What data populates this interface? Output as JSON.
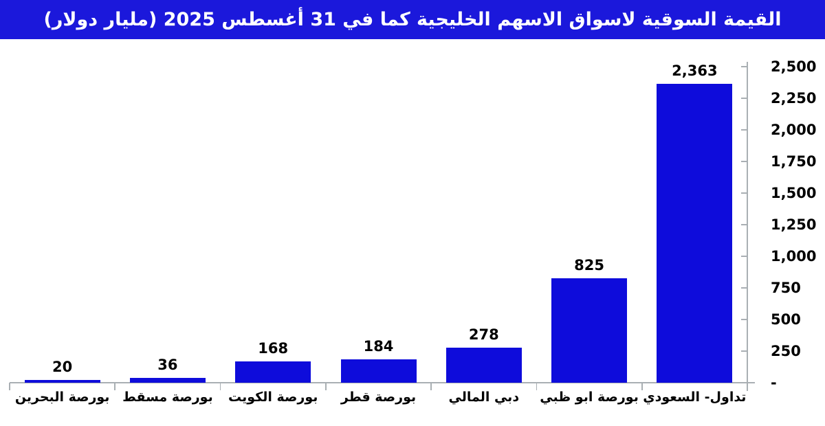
{
  "title": {
    "text": "القيمة السوقية لاسواق الاسهم الخليجية كما في 31 أغسطس 2025 (مليار دولار)"
  },
  "colors": {
    "title_bg": "#1b18db",
    "title_text": "#ffffff",
    "bar": "#0e0cdb",
    "axis": "#a9afb3",
    "label_text": "#000000",
    "background": "#ffffff"
  },
  "chart_data": {
    "type": "bar",
    "direction": "rtl",
    "title": "القيمة السوقية لاسواق الاسهم الخليجية كما في 31 أغسطس 2025 (مليار دولار)",
    "categories": [
      "بورصة البحرين",
      "بورصة مسقط",
      "بورصة الكويت",
      "بورصة قطر",
      "دبي المالي",
      "بورصة ابو ظبي",
      "تداول- السعودي"
    ],
    "values": [
      20,
      36,
      168,
      184,
      278,
      825,
      2363
    ],
    "value_labels": [
      "20",
      "36",
      "168",
      "184",
      "278",
      "825",
      "2,363"
    ],
    "xlabel": "",
    "ylabel": "",
    "ylim": [
      0,
      2500
    ],
    "ytick_step": 250,
    "ytick_values": [
      2500,
      2250,
      2000,
      1750,
      1500,
      1250,
      1000,
      750,
      500,
      250,
      0
    ],
    "ytick_labels": [
      "2,500",
      "2,250",
      "2,000",
      "1,750",
      "1,500",
      "1,250",
      "1,000",
      "750",
      "500",
      "250",
      "-"
    ],
    "yaxis_side": "right",
    "grid": false,
    "legend": "none"
  }
}
